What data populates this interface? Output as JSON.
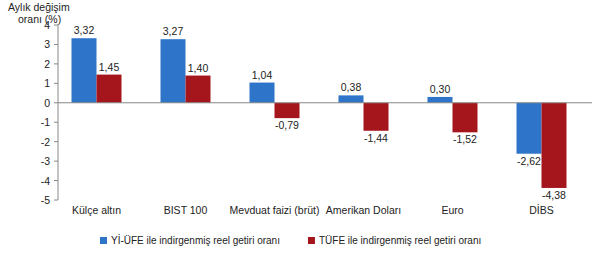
{
  "chart_data": {
    "type": "bar",
    "y_label": "Aylık değişim\noranı (%)",
    "categories": [
      "Külçe altın",
      "BIST 100",
      "Mevduat faizi (brüt)",
      "Amerikan Doları",
      "Euro",
      "DİBS"
    ],
    "series": [
      {
        "name": "Yİ-ÜFE ile indirgenmiş reel getiri oranı",
        "color": "#2e75c9",
        "values": [
          3.32,
          3.27,
          1.04,
          0.38,
          0.3,
          -2.62
        ],
        "value_labels": [
          "3,32",
          "3,27",
          "1,04",
          "0,38",
          "0,30",
          "-2,62"
        ]
      },
      {
        "name": "TÜFE ile indirgenmiş reel getiri oranı",
        "color": "#a5161c",
        "values": [
          1.45,
          1.4,
          -0.79,
          -1.44,
          -1.52,
          -4.38
        ],
        "value_labels": [
          "1,45",
          "1,40",
          "-0,79",
          "-1,44",
          "-1,52",
          "-4,38"
        ]
      }
    ],
    "ylim": [
      -5,
      4
    ],
    "yticks": [
      4,
      3,
      2,
      1,
      0,
      -1,
      -2,
      -3,
      -4,
      -5
    ],
    "grid": false,
    "legend": "bottom",
    "data_labels": true
  }
}
